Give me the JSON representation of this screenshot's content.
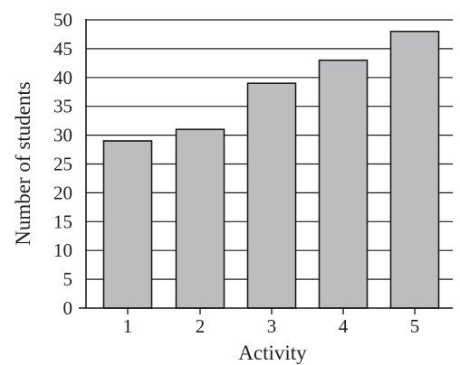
{
  "chart_data": {
    "type": "bar",
    "title": "",
    "xlabel": "Activity",
    "ylabel": "Number of students",
    "categories": [
      "1",
      "2",
      "3",
      "4",
      "5"
    ],
    "values": [
      29,
      31,
      39,
      43,
      48
    ],
    "ylim": [
      0,
      50
    ],
    "yticks": [
      0,
      5,
      10,
      15,
      20,
      25,
      30,
      35,
      40,
      45,
      50
    ],
    "grid": "horizontal",
    "legend": "none",
    "bar_color": "#bdbdbf",
    "bar_edge_color": "#1a1a1a",
    "grid_color": "#1a1a1a"
  }
}
